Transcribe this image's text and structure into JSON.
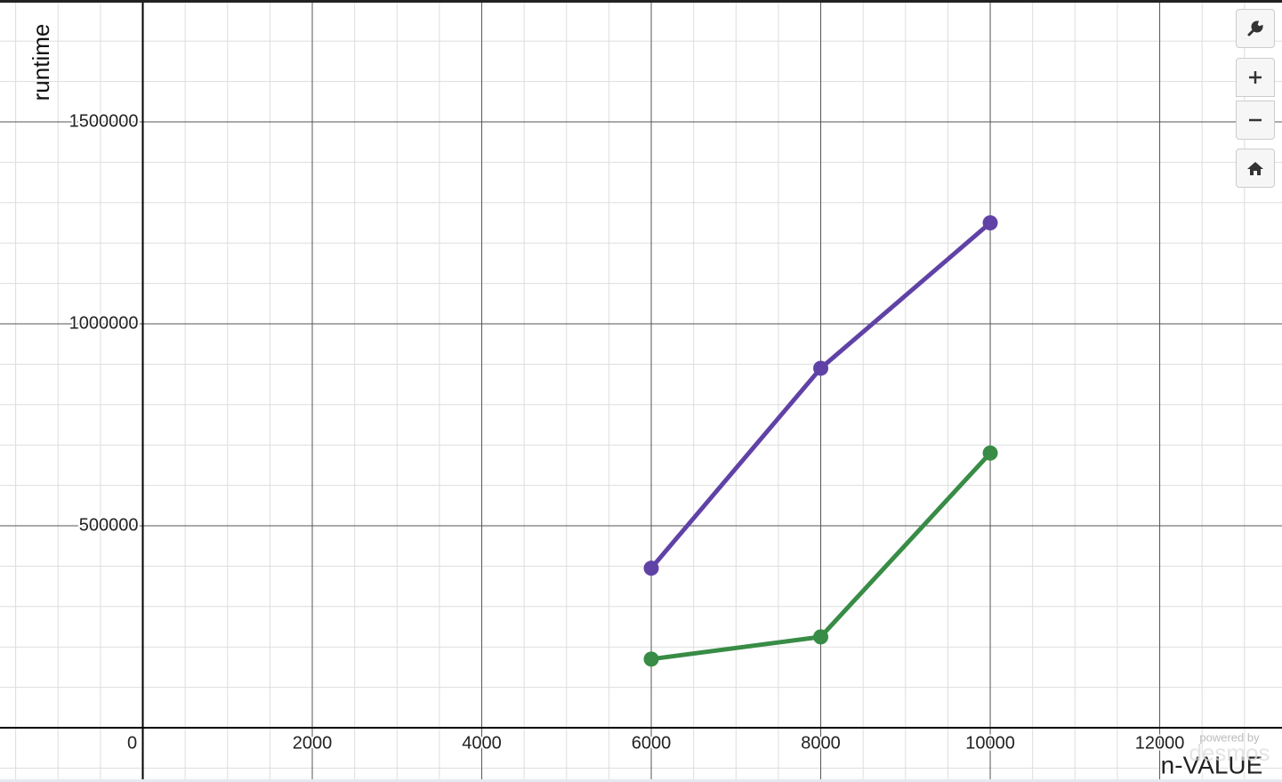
{
  "chart_data": {
    "type": "line",
    "x_label": "n-VALUE",
    "y_label": "runtime",
    "x": [
      6000,
      8000,
      10000
    ],
    "series": [
      {
        "color": "#6042a6",
        "values": [
          395000,
          890000,
          1250000
        ]
      },
      {
        "color": "#388c46",
        "values": [
          170000,
          225000,
          680000
        ]
      }
    ],
    "xlim": [
      -1685,
      13443
    ],
    "ylim": [
      -134361,
      1795154
    ],
    "xticks": [
      0,
      2000,
      4000,
      6000,
      8000,
      10000,
      12000
    ],
    "yticks": [
      500000,
      1000000,
      1500000
    ],
    "grid": true
  },
  "watermark": {
    "caption": "powered by",
    "logo": "desmos"
  }
}
